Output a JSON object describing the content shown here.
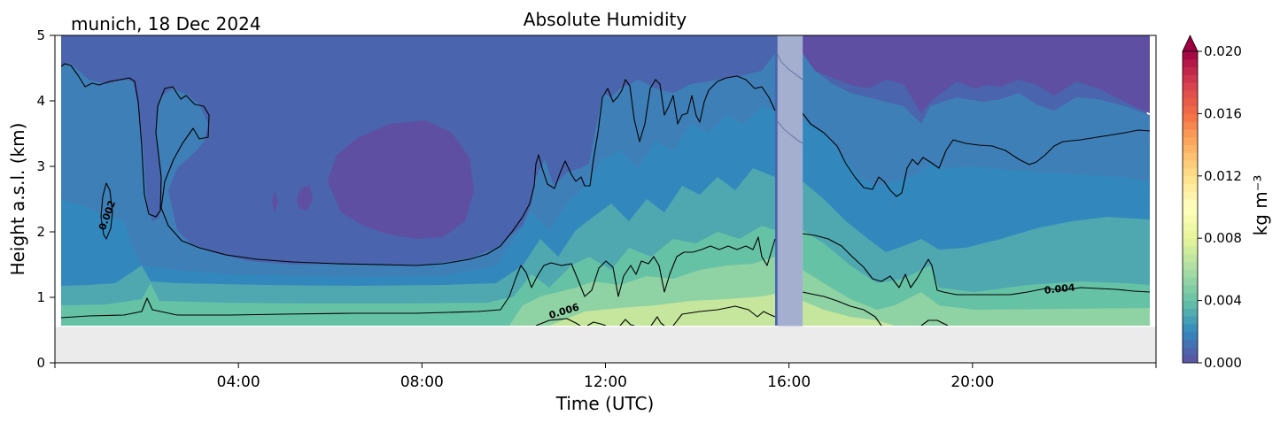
{
  "header": {
    "location_date": "munich, 18 Dec 2024",
    "title": "Absolute Humidity"
  },
  "chart_data": {
    "type": "contourf",
    "title": "Absolute Humidity",
    "subtitle": "munich, 18 Dec 2024",
    "xlabel": "Time (UTC)",
    "ylabel": "Height a.s.l. (km)",
    "xlim_hours": [
      0,
      24
    ],
    "ylim": [
      0,
      5
    ],
    "x_ticks": [
      {
        "hour": 4,
        "label": "04:00"
      },
      {
        "hour": 8,
        "label": "08:00"
      },
      {
        "hour": 12,
        "label": "12:00"
      },
      {
        "hour": 16,
        "label": "16:00"
      },
      {
        "hour": 20,
        "label": "20:00"
      }
    ],
    "y_ticks": [
      {
        "value": 0,
        "label": "0"
      },
      {
        "value": 1,
        "label": "1"
      },
      {
        "value": 2,
        "label": "2"
      },
      {
        "value": 3,
        "label": "3"
      },
      {
        "value": 4,
        "label": "4"
      },
      {
        "value": 5,
        "label": "5"
      }
    ],
    "data_extent": {
      "time_start": 0.12,
      "time_end": 23.8,
      "height_bottom": 0.55,
      "height_top": 5
    },
    "no_data_below_km": 0.55,
    "gap_hours": [
      15.75,
      16.3
    ],
    "contour_levels": [
      0.002,
      0.004,
      0.006
    ],
    "contour_labels": [
      {
        "text": "0.002",
        "time": 1.15,
        "height": 2.25,
        "angle": -70
      },
      {
        "text": "0.004",
        "time": 21.9,
        "height": 1.12,
        "angle": -6
      },
      {
        "text": "0.006",
        "time": 11.1,
        "height": 0.78,
        "angle": -17
      }
    ],
    "colorbar": {
      "label": "kg m⁻³",
      "min": 0.0,
      "max": 0.02,
      "extend": "max",
      "ticks": [
        "0.000",
        "0.004",
        "0.008",
        "0.012",
        "0.016",
        "0.020"
      ],
      "colormap": "Spectral_r",
      "levels": 40
    },
    "colors": {
      "very_dry": "#5e4fa2",
      "dry": "#4a64ad",
      "dry_mid": "#3f7fb7",
      "mid": "#3288bd",
      "teal": "#4fa7b0",
      "green": "#66c2a5",
      "light_green": "#8fd2a3",
      "yellow_green": "#c5e69c",
      "no_data": "#ebebeb"
    }
  }
}
